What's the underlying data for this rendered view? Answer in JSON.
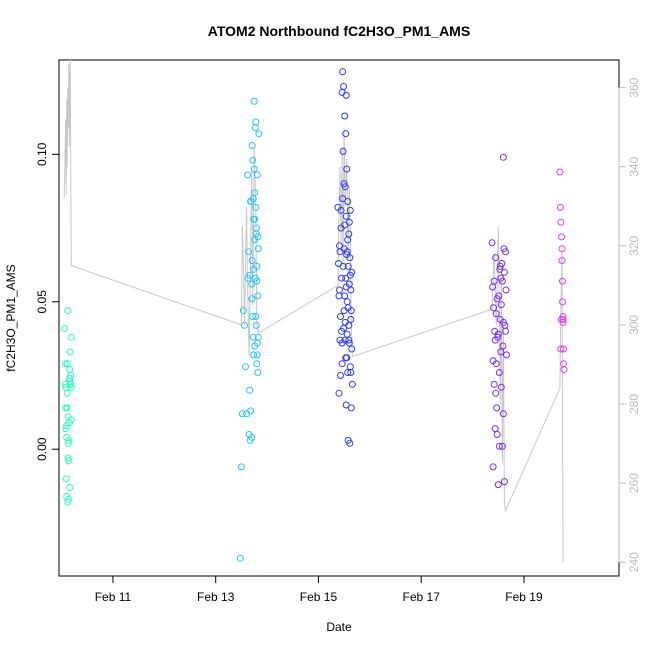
{
  "chart_data": {
    "type": "scatter",
    "title": "ATOM2 Northbound fC2H3O_PM1_AMS",
    "xlabel": "Date",
    "ylabel": "fC2H3O_PM1_AMS",
    "x_ticks": [
      "Feb 11",
      "Feb 13",
      "Feb 15",
      "Feb 17",
      "Feb 19"
    ],
    "x_tick_day": [
      11,
      13,
      15,
      17,
      19
    ],
    "y_ticks": [
      "0.00",
      "0.05",
      "0.10"
    ],
    "y_tick_values": [
      0.0,
      0.05,
      0.1
    ],
    "y2_ticks": [
      "240",
      "260",
      "280",
      "300",
      "320",
      "340",
      "360"
    ],
    "y2_tick_values": [
      240,
      260,
      280,
      300,
      320,
      340,
      360
    ],
    "xlim": [
      9.95,
      20.85
    ],
    "ylim": [
      -0.043,
      0.132
    ],
    "y2lim": [
      236.5,
      367
    ],
    "grid": false,
    "legend": "none",
    "series": [
      {
        "color": "#2affc2",
        "points": [
          [
            10.06,
            0.041
          ],
          [
            10.07,
            0.029
          ],
          [
            10.07,
            0.022
          ],
          [
            10.08,
            0.014
          ],
          [
            10.08,
            0.007
          ],
          [
            10.09,
            0.021
          ],
          [
            10.09,
            -0.01
          ],
          [
            10.1,
            -0.016
          ],
          [
            10.1,
            0.004
          ],
          [
            10.11,
            0.019
          ],
          [
            10.11,
            0.029
          ],
          [
            10.12,
            0.047
          ],
          [
            10.12,
            -0.018
          ],
          [
            10.13,
            0.011
          ],
          [
            10.13,
            -0.003
          ],
          [
            10.14,
            -0.004
          ],
          [
            10.14,
            0.003
          ],
          [
            10.15,
            0.024
          ],
          [
            10.15,
            0.009
          ],
          [
            10.16,
            -0.013
          ],
          [
            10.16,
            0.027
          ],
          [
            10.17,
            0.022
          ],
          [
            10.17,
            0.033
          ],
          [
            10.18,
            0.025
          ],
          [
            10.18,
            0.022
          ],
          [
            10.19,
            0.021
          ],
          [
            10.19,
            0.038
          ],
          [
            10.19,
            0.01
          ],
          [
            10.1,
            0.008
          ],
          [
            10.11,
            0.014
          ],
          [
            10.13,
            0.002
          ],
          [
            10.16,
            0.023
          ],
          [
            10.14,
            -0.017
          ]
        ]
      },
      {
        "color": "#28c4ff",
        "points": [
          [
            13.48,
            -0.037
          ],
          [
            13.5,
            -0.006
          ],
          [
            13.52,
            0.012
          ],
          [
            13.54,
            0.047
          ],
          [
            13.56,
            0.042
          ],
          [
            13.58,
            0.028
          ],
          [
            13.6,
            0.012
          ],
          [
            13.62,
            0.093
          ],
          [
            13.63,
            0.058
          ],
          [
            13.64,
            0.067
          ],
          [
            13.65,
            0.005
          ],
          [
            13.66,
            0.02
          ],
          [
            13.67,
            0.003
          ],
          [
            13.68,
            0.013
          ],
          [
            13.69,
            0.084
          ],
          [
            13.7,
            0.056
          ],
          [
            13.71,
            0.103
          ],
          [
            13.71,
            0.064
          ],
          [
            13.72,
            0.045
          ],
          [
            13.73,
            0.085
          ],
          [
            13.73,
            0.038
          ],
          [
            13.74,
            0.078
          ],
          [
            13.74,
            0.032
          ],
          [
            13.75,
            0.095
          ],
          [
            13.75,
            0.118
          ],
          [
            13.76,
            0.071
          ],
          [
            13.76,
            0.087
          ],
          [
            13.77,
            0.109
          ],
          [
            13.77,
            0.058
          ],
          [
            13.78,
            0.082
          ],
          [
            13.78,
            0.111
          ],
          [
            13.79,
            0.042
          ],
          [
            13.79,
            0.073
          ],
          [
            13.8,
            0.029
          ],
          [
            13.8,
            0.062
          ],
          [
            13.81,
            0.093
          ],
          [
            13.81,
            0.036
          ],
          [
            13.82,
            0.026
          ],
          [
            13.82,
            0.052
          ],
          [
            13.83,
            0.038
          ],
          [
            13.83,
            0.068
          ],
          [
            13.84,
            0.107
          ],
          [
            13.7,
            0.051
          ],
          [
            13.72,
            0.098
          ],
          [
            13.74,
            0.061
          ],
          [
            13.76,
            0.078
          ],
          [
            13.78,
            0.045
          ],
          [
            13.8,
            0.057
          ],
          [
            13.82,
            0.072
          ],
          [
            13.66,
            0.059
          ],
          [
            13.68,
            0.084
          ],
          [
            13.7,
            0.004
          ],
          [
            13.76,
            0.035
          ],
          [
            13.81,
            0.032
          ],
          [
            13.79,
            0.075
          ]
        ]
      },
      {
        "color": "#2f3bff",
        "points": [
          [
            15.38,
            0.082
          ],
          [
            15.39,
            0.063
          ],
          [
            15.4,
            0.019
          ],
          [
            15.41,
            0.054
          ],
          [
            15.42,
            0.067
          ],
          [
            15.43,
            0.025
          ],
          [
            15.44,
            0.081
          ],
          [
            15.45,
            0.04
          ],
          [
            15.46,
            0.121
          ],
          [
            15.47,
            0.128
          ],
          [
            15.48,
            0.101
          ],
          [
            15.49,
            0.123
          ],
          [
            15.5,
            0.047
          ],
          [
            15.51,
            0.113
          ],
          [
            15.51,
            0.076
          ],
          [
            15.52,
            0.089
          ],
          [
            15.52,
            0.037
          ],
          [
            15.53,
            0.107
          ],
          [
            15.53,
            0.058
          ],
          [
            15.54,
            0.12
          ],
          [
            15.54,
            0.015
          ],
          [
            15.55,
            0.095
          ],
          [
            15.55,
            0.031
          ],
          [
            15.56,
            0.067
          ],
          [
            15.56,
            0.05
          ],
          [
            15.57,
            0.084
          ],
          [
            15.57,
            0.026
          ],
          [
            15.58,
            0.003
          ],
          [
            15.58,
            0.062
          ],
          [
            15.59,
            0.042
          ],
          [
            15.59,
            0.073
          ],
          [
            15.6,
            0.056
          ],
          [
            15.6,
            0.036
          ],
          [
            15.61,
            0.002
          ],
          [
            15.61,
            0.065
          ],
          [
            15.62,
            0.028
          ],
          [
            15.62,
            0.081
          ],
          [
            15.63,
            0.054
          ],
          [
            15.63,
            0.026
          ],
          [
            15.64,
            0.014
          ],
          [
            15.64,
            0.047
          ],
          [
            15.65,
            0.034
          ],
          [
            15.65,
            0.06
          ],
          [
            15.66,
            0.022
          ],
          [
            15.4,
            0.052
          ],
          [
            15.42,
            0.037
          ],
          [
            15.44,
            0.075
          ],
          [
            15.46,
            0.029
          ],
          [
            15.48,
            0.062
          ],
          [
            15.5,
            0.068
          ],
          [
            15.52,
            0.043
          ],
          [
            15.54,
            0.055
          ],
          [
            15.56,
            0.039
          ],
          [
            15.58,
            0.048
          ],
          [
            15.6,
            0.077
          ],
          [
            15.62,
            0.059
          ],
          [
            15.43,
            0.045
          ],
          [
            15.47,
            0.085
          ],
          [
            15.53,
            0.031
          ],
          [
            15.57,
            0.071
          ],
          [
            15.45,
            0.058
          ],
          [
            15.49,
            0.041
          ],
          [
            15.51,
            0.052
          ],
          [
            15.55,
            0.066
          ],
          [
            15.59,
            0.037
          ],
          [
            15.63,
            0.044
          ],
          [
            15.41,
            0.069
          ],
          [
            15.46,
            0.036
          ],
          [
            15.5,
            0.09
          ],
          [
            15.54,
            0.079
          ]
        ]
      },
      {
        "color": "#7a2bff",
        "points": [
          [
            18.38,
            0.07
          ],
          [
            18.39,
            0.055
          ],
          [
            18.4,
            -0.006
          ],
          [
            18.41,
            0.048
          ],
          [
            18.42,
            0.022
          ],
          [
            18.43,
            0.04
          ],
          [
            18.44,
            0.007
          ],
          [
            18.45,
            0.065
          ],
          [
            18.46,
            0.029
          ],
          [
            18.47,
            0.014
          ],
          [
            18.48,
            0.005
          ],
          [
            18.49,
            0.038
          ],
          [
            18.5,
            -0.012
          ],
          [
            18.51,
            0.052
          ],
          [
            18.52,
            0.001
          ],
          [
            18.53,
            0.061
          ],
          [
            18.54,
            0.044
          ],
          [
            18.55,
            0.058
          ],
          [
            18.56,
            0.021
          ],
          [
            18.57,
            0.063
          ],
          [
            18.58,
            0.001
          ],
          [
            18.59,
            0.035
          ],
          [
            18.6,
            0.099
          ],
          [
            18.61,
            0.068
          ],
          [
            18.62,
            -0.011
          ],
          [
            18.63,
            0.042
          ],
          [
            18.64,
            0.067
          ],
          [
            18.65,
            0.054
          ],
          [
            18.66,
            0.032
          ],
          [
            18.4,
            0.03
          ],
          [
            18.42,
            0.057
          ],
          [
            18.44,
            0.037
          ],
          [
            18.46,
            0.046
          ],
          [
            18.48,
            0.051
          ],
          [
            18.5,
            0.039
          ],
          [
            18.52,
            0.026
          ],
          [
            18.54,
            0.062
          ],
          [
            18.56,
            0.049
          ],
          [
            18.58,
            0.057
          ],
          [
            18.6,
            0.043
          ],
          [
            18.62,
            0.06
          ],
          [
            18.64,
            0.04
          ],
          [
            18.45,
            0.019
          ],
          [
            18.55,
            0.033
          ],
          [
            18.6,
            0.012
          ]
        ]
      },
      {
        "color": "#e93cff",
        "points": [
          [
            19.7,
            0.094
          ],
          [
            19.71,
            0.082
          ],
          [
            19.72,
            0.077
          ],
          [
            19.73,
            0.072
          ],
          [
            19.74,
            0.068
          ],
          [
            19.74,
            0.064
          ],
          [
            19.75,
            0.057
          ],
          [
            19.75,
            0.05
          ],
          [
            19.76,
            0.044
          ],
          [
            19.76,
            0.043
          ],
          [
            19.77,
            0.034
          ],
          [
            19.77,
            0.029
          ],
          [
            19.78,
            0.027
          ],
          [
            19.73,
            0.044
          ],
          [
            19.72,
            0.034
          ],
          [
            19.76,
            0.045
          ]
        ]
      }
    ],
    "secondary_line": {
      "color": "#c8c8c8",
      "axis": "right",
      "points": [
        [
          10.05,
          332
        ],
        [
          10.06,
          338
        ],
        [
          10.07,
          346
        ],
        [
          10.08,
          352
        ],
        [
          10.09,
          333
        ],
        [
          10.1,
          357
        ],
        [
          10.11,
          340
        ],
        [
          10.12,
          360
        ],
        [
          10.13,
          350
        ],
        [
          10.14,
          366
        ],
        [
          10.15,
          345
        ],
        [
          10.16,
          362
        ],
        [
          10.17,
          367
        ],
        [
          10.18,
          335
        ],
        [
          10.19,
          315
        ],
        [
          13.5,
          300
        ],
        [
          13.52,
          325
        ],
        [
          13.54,
          315
        ],
        [
          13.56,
          300
        ],
        [
          13.6,
          330
        ],
        [
          13.62,
          310
        ],
        [
          13.65,
          292
        ],
        [
          13.68,
          318
        ],
        [
          13.7,
          340
        ],
        [
          13.72,
          305
        ],
        [
          13.75,
          345
        ],
        [
          13.78,
          330
        ],
        [
          13.8,
          300
        ],
        [
          13.84,
          298
        ],
        [
          15.38,
          310
        ],
        [
          15.4,
          330
        ],
        [
          15.42,
          340
        ],
        [
          15.44,
          320
        ],
        [
          15.46,
          345
        ],
        [
          15.48,
          315
        ],
        [
          15.5,
          350
        ],
        [
          15.52,
          330
        ],
        [
          15.55,
          342
        ],
        [
          15.58,
          318
        ],
        [
          15.6,
          335
        ],
        [
          15.62,
          322
        ],
        [
          15.64,
          300
        ],
        [
          15.66,
          292
        ],
        [
          18.38,
          304
        ],
        [
          18.42,
          318
        ],
        [
          18.46,
          300
        ],
        [
          18.5,
          325
        ],
        [
          18.54,
          280
        ],
        [
          18.56,
          312
        ],
        [
          18.58,
          265
        ],
        [
          18.6,
          300
        ],
        [
          18.62,
          255
        ],
        [
          18.64,
          253
        ],
        [
          19.7,
          284
        ],
        [
          19.72,
          305
        ],
        [
          19.74,
          320
        ],
        [
          19.76,
          240
        ]
      ]
    }
  }
}
